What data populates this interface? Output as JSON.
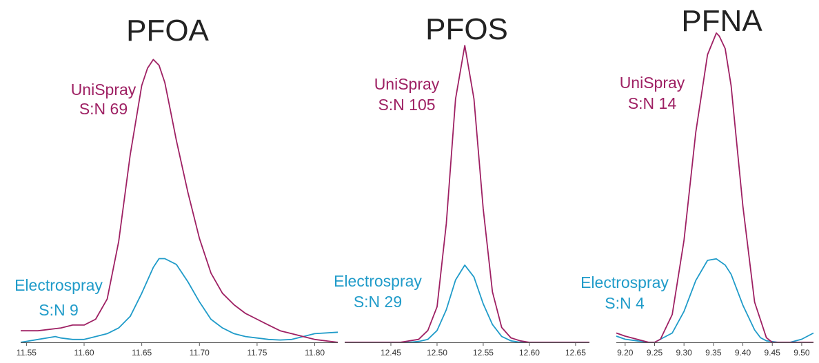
{
  "colors": {
    "unispray": "#9e2063",
    "electrospray": "#1f9bc9"
  },
  "chart_data": [
    {
      "type": "line",
      "title": "PFOA",
      "xlim": [
        11.545,
        11.82
      ],
      "ylim": [
        0,
        100
      ],
      "x_ticks": [
        "11.55",
        "11.60",
        "11.65",
        "11.70",
        "11.75",
        "11.80"
      ],
      "series": [
        {
          "name": "UniSpray",
          "x": [
            11.545,
            11.56,
            11.58,
            11.59,
            11.6,
            11.61,
            11.62,
            11.63,
            11.64,
            11.65,
            11.655,
            11.66,
            11.665,
            11.67,
            11.675,
            11.68,
            11.69,
            11.7,
            11.71,
            11.72,
            11.73,
            11.74,
            11.75,
            11.76,
            11.77,
            11.78,
            11.79,
            11.8,
            11.82
          ],
          "y": [
            4,
            4,
            5,
            6,
            6,
            8,
            15,
            35,
            65,
            89,
            95,
            98,
            96,
            90,
            80,
            70,
            52,
            36,
            24,
            17,
            13,
            10,
            8,
            6,
            4,
            3,
            2,
            1,
            0
          ]
        },
        {
          "name": "Electrospray",
          "x": [
            11.545,
            11.56,
            11.575,
            11.58,
            11.59,
            11.6,
            11.61,
            11.62,
            11.63,
            11.64,
            11.65,
            11.66,
            11.665,
            11.67,
            11.68,
            11.69,
            11.7,
            11.71,
            11.72,
            11.73,
            11.74,
            11.75,
            11.76,
            11.77,
            11.78,
            11.79,
            11.8,
            11.82
          ],
          "y": [
            0,
            1,
            2,
            1.5,
            1,
            1,
            2,
            3,
            5,
            9,
            17,
            26,
            29,
            29,
            27,
            21,
            14,
            8,
            5,
            3,
            2,
            1.5,
            1,
            0.8,
            1,
            2,
            3,
            3.5
          ]
        }
      ],
      "annotations": [
        {
          "series": "UniSpray",
          "lines": [
            "UniSpray",
            "S:N 69"
          ]
        },
        {
          "series": "Electrospray",
          "lines": [
            "Electrospray",
            "S:N 9"
          ]
        }
      ]
    },
    {
      "type": "line",
      "title": "PFOS",
      "xlim": [
        12.4,
        12.665
      ],
      "ylim": [
        0,
        100
      ],
      "x_ticks": [
        "12.45",
        "12.50",
        "12.55",
        "12.60",
        "12.65"
      ],
      "series": [
        {
          "name": "UniSpray",
          "x": [
            12.4,
            12.46,
            12.48,
            12.49,
            12.5,
            12.51,
            12.52,
            12.53,
            12.54,
            12.55,
            12.56,
            12.57,
            12.58,
            12.59,
            12.6,
            12.665
          ],
          "y": [
            0,
            0,
            1,
            4,
            12,
            40,
            82,
            100,
            82,
            45,
            17,
            5,
            1.5,
            0.5,
            0,
            0
          ]
        },
        {
          "name": "Electrospray",
          "x": [
            12.4,
            12.47,
            12.48,
            12.49,
            12.5,
            12.51,
            12.52,
            12.53,
            12.54,
            12.55,
            12.56,
            12.57,
            12.58,
            12.59,
            12.665
          ],
          "y": [
            0,
            0,
            0.3,
            1,
            4,
            11,
            21,
            26,
            22,
            13,
            6,
            2,
            0.5,
            0,
            0
          ]
        }
      ],
      "annotations": [
        {
          "series": "UniSpray",
          "lines": [
            "UniSpray",
            "S:N 105"
          ]
        },
        {
          "series": "Electrospray",
          "lines": [
            "Electrospray",
            "S:N 29"
          ]
        }
      ]
    },
    {
      "type": "line",
      "title": "PFNA",
      "xlim": [
        9.185,
        9.52
      ],
      "ylim": [
        0,
        100
      ],
      "x_ticks": [
        "9.20",
        "9.25",
        "9.30",
        "9.35",
        "9.40",
        "9.45",
        "9.50"
      ],
      "series": [
        {
          "name": "UniSpray",
          "x": [
            9.185,
            9.2,
            9.22,
            9.24,
            9.25,
            9.26,
            9.28,
            9.3,
            9.32,
            9.34,
            9.355,
            9.36,
            9.37,
            9.38,
            9.4,
            9.42,
            9.44,
            9.45,
            9.46,
            9.52
          ],
          "y": [
            3,
            2,
            1,
            0,
            0,
            1,
            9,
            33,
            68,
            93,
            100,
            99,
            95,
            83,
            44,
            13,
            1.5,
            0,
            0,
            0
          ]
        },
        {
          "name": "Electrospray",
          "x": [
            9.185,
            9.2,
            9.22,
            9.24,
            9.25,
            9.26,
            9.28,
            9.3,
            9.32,
            9.34,
            9.355,
            9.37,
            9.38,
            9.4,
            9.42,
            9.43,
            9.44,
            9.46,
            9.48,
            9.5,
            9.52
          ],
          "y": [
            2,
            1,
            0.5,
            0,
            0,
            1,
            3,
            10,
            20,
            26.5,
            27,
            25,
            22,
            12,
            4,
            1.5,
            0.5,
            0,
            0,
            1,
            3
          ]
        }
      ],
      "annotations": [
        {
          "series": "UniSpray",
          "lines": [
            "UniSpray",
            "S:N 14"
          ]
        },
        {
          "series": "Electrospray",
          "lines": [
            "Electrospray",
            "S:N 4"
          ]
        }
      ]
    }
  ]
}
